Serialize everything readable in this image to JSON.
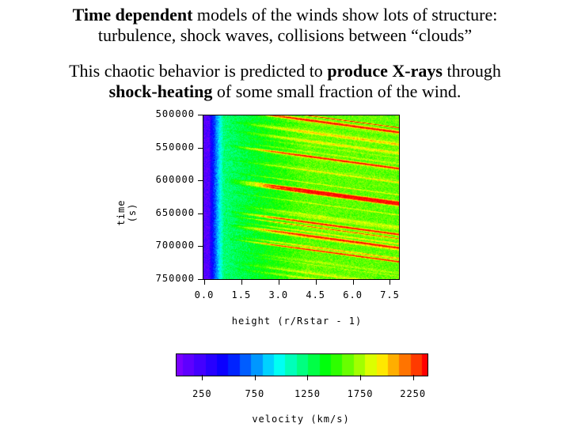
{
  "slide": {
    "para1": {
      "bold_lead": "Time dependent",
      "rest_line1": " models of the winds show lots of structure:",
      "line2": "turbulence, shock waves, collisions between “clouds”"
    },
    "para2": {
      "line1_pre": "This chaotic behavior is predicted to ",
      "line1_bold": "produce X-rays",
      "line1_post": " through",
      "line2_bold": "shock-heating",
      "line2_post": " of some small fraction of the wind."
    }
  },
  "chart_data": {
    "type": "heatmap",
    "title": "",
    "xlabel": "height (r/Rstar - 1)",
    "ylabel": "time (s)",
    "xlim": [
      0.0,
      7.9
    ],
    "ylim": [
      500000,
      750000
    ],
    "y_inverted": true,
    "xticks": [
      "0.0",
      "1.5",
      "3.0",
      "4.5",
      "6.0",
      "7.5"
    ],
    "xtick_values": [
      0.0,
      1.5,
      3.0,
      4.5,
      6.0,
      7.5
    ],
    "yticks": [
      "500000",
      "550000",
      "600000",
      "650000",
      "700000",
      "750000"
    ],
    "ytick_values": [
      500000,
      550000,
      600000,
      650000,
      700000,
      750000
    ],
    "description_of_field": "velocity near 250 km/s at base (x<0.5), rising to ~1250-1750 km/s outward with diagonal high-velocity streaks (~2250 km/s) moving outward over time",
    "colorbar": {
      "label": "velocity (km/s)",
      "range": [
        0,
        2380
      ],
      "ticks": [
        "250",
        "750",
        "1250",
        "1750",
        "2250"
      ],
      "tick_values": [
        250,
        750,
        1250,
        1750,
        2250
      ],
      "colors": [
        "#7a00ff",
        "#0000ff",
        "#00ffff",
        "#00ff00",
        "#ffff00",
        "#ff0000"
      ]
    }
  }
}
